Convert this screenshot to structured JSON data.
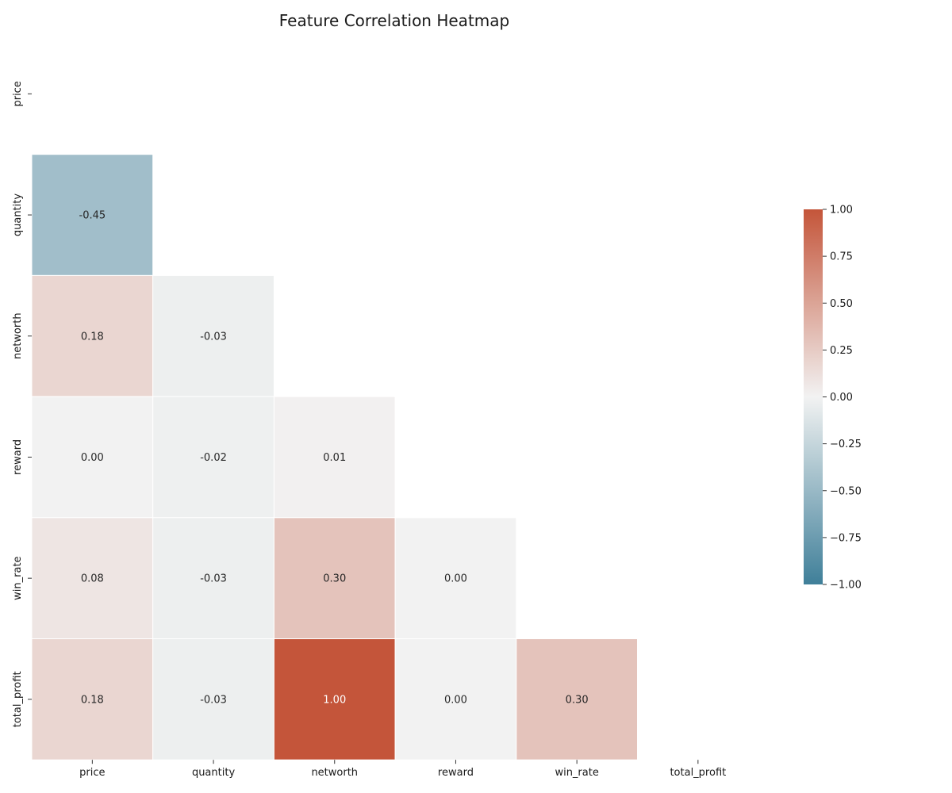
{
  "chart_data": {
    "type": "heatmap",
    "title": "Feature Correlation Heatmap",
    "labels": [
      "price",
      "quantity",
      "networth",
      "reward",
      "win_rate",
      "total_profit"
    ],
    "cells": [
      {
        "row": 1,
        "col": 0,
        "value": -0.45,
        "label": "-0.45"
      },
      {
        "row": 2,
        "col": 0,
        "value": 0.18,
        "label": "0.18"
      },
      {
        "row": 2,
        "col": 1,
        "value": -0.03,
        "label": "-0.03"
      },
      {
        "row": 3,
        "col": 0,
        "value": 0.0,
        "label": "0.00"
      },
      {
        "row": 3,
        "col": 1,
        "value": -0.02,
        "label": "-0.02"
      },
      {
        "row": 3,
        "col": 2,
        "value": 0.01,
        "label": "0.01"
      },
      {
        "row": 4,
        "col": 0,
        "value": 0.08,
        "label": "0.08"
      },
      {
        "row": 4,
        "col": 1,
        "value": -0.03,
        "label": "-0.03"
      },
      {
        "row": 4,
        "col": 2,
        "value": 0.3,
        "label": "0.30"
      },
      {
        "row": 4,
        "col": 3,
        "value": 0.0,
        "label": "0.00"
      },
      {
        "row": 5,
        "col": 0,
        "value": 0.18,
        "label": "0.18"
      },
      {
        "row": 5,
        "col": 1,
        "value": -0.03,
        "label": "-0.03"
      },
      {
        "row": 5,
        "col": 2,
        "value": 1.0,
        "label": "1.00"
      },
      {
        "row": 5,
        "col": 3,
        "value": 0.0,
        "label": "0.00"
      },
      {
        "row": 5,
        "col": 4,
        "value": 0.3,
        "label": "0.30"
      }
    ],
    "mask": "upper-triangle-including-diagonal",
    "colorbar": {
      "vmin": -1.0,
      "vmax": 1.0,
      "ticks": [
        1.0,
        0.75,
        0.5,
        0.25,
        0.0,
        -0.25,
        -0.5,
        -0.75,
        -1.0
      ],
      "tick_labels": [
        "1.00",
        "0.75",
        "0.50",
        "0.25",
        "0.00",
        "−0.25",
        "−0.50",
        "−0.75",
        "−1.00"
      ],
      "placement": "right"
    },
    "colors": {
      "negative": "#3f7f99",
      "center": "#f2f2f2",
      "positive": "#c4553a",
      "grid_line": "#ffffff"
    },
    "grid": false
  }
}
